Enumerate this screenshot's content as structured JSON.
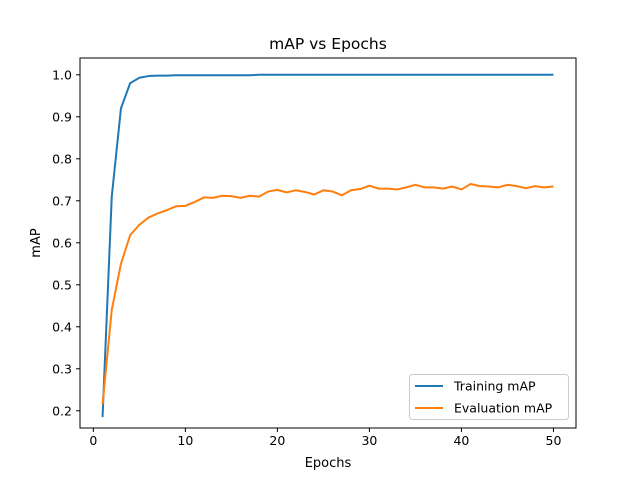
{
  "chart_data": {
    "type": "line",
    "title": "mAP vs Epochs",
    "xlabel": "Epochs",
    "ylabel": "mAP",
    "xlim": [
      -1.45,
      52.45
    ],
    "ylim": [
      0.159,
      1.04
    ],
    "xticks": [
      "0",
      "10",
      "20",
      "30",
      "40",
      "50"
    ],
    "yticks": [
      "0.2",
      "0.3",
      "0.4",
      "0.5",
      "0.6",
      "0.7",
      "0.8",
      "0.9",
      "1.0"
    ],
    "grid": false,
    "legend_position": "lower-right",
    "x": [
      1,
      2,
      3,
      4,
      5,
      6,
      7,
      8,
      9,
      10,
      11,
      12,
      13,
      14,
      15,
      16,
      17,
      18,
      19,
      20,
      21,
      22,
      23,
      24,
      25,
      26,
      27,
      28,
      29,
      30,
      31,
      32,
      33,
      34,
      35,
      36,
      37,
      38,
      39,
      40,
      41,
      42,
      43,
      44,
      45,
      46,
      47,
      48,
      49,
      50
    ],
    "series": [
      {
        "name": "Training mAP",
        "color": "#1f77b4",
        "values": [
          0.185,
          0.71,
          0.92,
          0.98,
          0.993,
          0.997,
          0.998,
          0.998,
          0.999,
          0.999,
          0.999,
          0.999,
          0.999,
          0.999,
          0.999,
          0.999,
          0.999,
          1.0,
          1.0,
          1.0,
          1.0,
          1.0,
          1.0,
          1.0,
          1.0,
          1.0,
          1.0,
          1.0,
          1.0,
          1.0,
          1.0,
          1.0,
          1.0,
          1.0,
          1.0,
          1.0,
          1.0,
          1.0,
          1.0,
          1.0,
          1.0,
          1.0,
          1.0,
          1.0,
          1.0,
          1.0,
          1.0,
          1.0,
          1.0,
          1.0
        ]
      },
      {
        "name": "Evaluation mAP",
        "color": "#ff7f0e",
        "values": [
          0.215,
          0.44,
          0.55,
          0.618,
          0.643,
          0.66,
          0.67,
          0.678,
          0.687,
          0.688,
          0.697,
          0.708,
          0.707,
          0.712,
          0.711,
          0.707,
          0.712,
          0.71,
          0.722,
          0.726,
          0.72,
          0.725,
          0.721,
          0.715,
          0.725,
          0.722,
          0.713,
          0.725,
          0.728,
          0.736,
          0.729,
          0.729,
          0.727,
          0.732,
          0.738,
          0.732,
          0.732,
          0.729,
          0.734,
          0.727,
          0.74,
          0.735,
          0.734,
          0.732,
          0.738,
          0.735,
          0.73,
          0.735,
          0.732,
          0.734
        ]
      }
    ]
  }
}
